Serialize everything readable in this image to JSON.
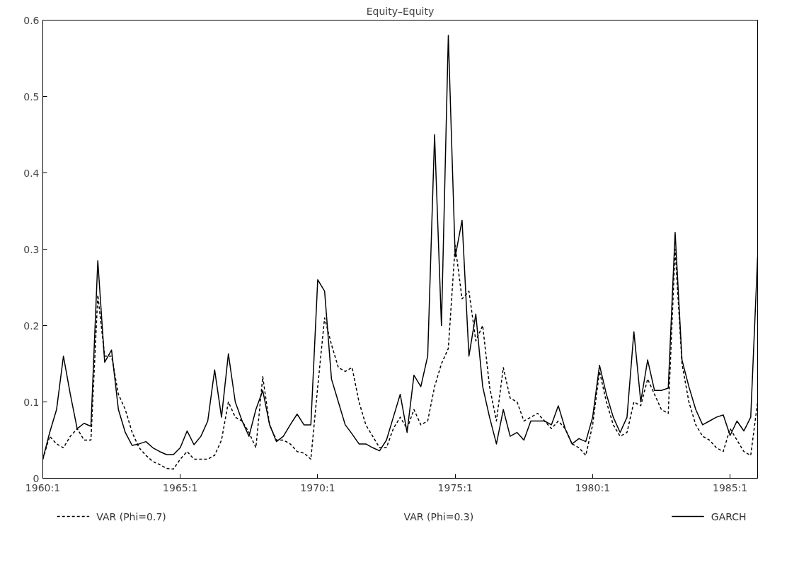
{
  "chart_data": {
    "type": "line",
    "title": "Equity–Equity",
    "categories": [
      "1960:1",
      null,
      null,
      null,
      null,
      null,
      null,
      null,
      null,
      null,
      null,
      null,
      null,
      null,
      null,
      null,
      null,
      null,
      null,
      null,
      "1965:1",
      null,
      null,
      null,
      null,
      null,
      null,
      null,
      null,
      null,
      null,
      null,
      null,
      null,
      null,
      null,
      null,
      null,
      null,
      null,
      "1970:1",
      null,
      null,
      null,
      null,
      null,
      null,
      null,
      null,
      null,
      null,
      null,
      null,
      null,
      null,
      null,
      null,
      null,
      null,
      null,
      "1975:1",
      null,
      null,
      null,
      null,
      null,
      null,
      null,
      null,
      null,
      null,
      null,
      null,
      null,
      null,
      null,
      null,
      null,
      null,
      null,
      "1980:1",
      null,
      null,
      null,
      null,
      null,
      null,
      null,
      null,
      null,
      null,
      null,
      null,
      null,
      null,
      null,
      null,
      null,
      null,
      null,
      "1985:1",
      null,
      null,
      null,
      null
    ],
    "ylim": [
      0,
      0.6
    ],
    "yticks": [
      0,
      0.1,
      0.2,
      0.3,
      0.4,
      0.5,
      0.6
    ],
    "series": [
      {
        "name": "VAR (Phi=0.7)",
        "color": "#000000",
        "line_style": "dashed",
        "values": [
          0.025,
          0.055,
          0.045,
          0.04,
          0.055,
          0.065,
          0.05,
          0.05,
          0.24,
          0.16,
          0.16,
          0.11,
          0.09,
          0.06,
          0.04,
          0.03,
          0.022,
          0.018,
          0.013,
          0.012,
          0.025,
          0.035,
          0.025,
          0.025,
          0.025,
          0.03,
          0.05,
          0.1,
          0.08,
          0.075,
          0.06,
          0.04,
          0.133,
          0.07,
          0.05,
          0.05,
          0.045,
          0.035,
          0.033,
          0.025,
          0.12,
          0.21,
          0.175,
          0.145,
          0.14,
          0.145,
          0.1,
          0.07,
          0.055,
          0.04,
          0.04,
          0.065,
          0.08,
          0.065,
          0.09,
          0.07,
          0.075,
          0.12,
          0.15,
          0.17,
          0.305,
          0.235,
          0.245,
          0.18,
          0.2,
          0.12,
          0.075,
          0.145,
          0.105,
          0.1,
          0.075,
          0.08,
          0.085,
          0.075,
          0.065,
          0.075,
          0.065,
          0.045,
          0.04,
          0.03,
          0.07,
          0.14,
          0.1,
          0.07,
          0.055,
          0.06,
          0.1,
          0.095,
          0.13,
          0.11,
          0.09,
          0.085,
          0.3,
          0.15,
          0.1,
          0.07,
          0.055,
          0.05,
          0.04,
          0.035,
          0.065,
          0.05,
          0.035,
          0.03,
          0.1
        ]
      },
      {
        "name": "VAR (Phi=0.3)",
        "values": [
          null,
          null,
          null,
          null,
          null,
          null,
          null,
          null,
          null,
          null,
          null,
          null,
          null,
          null,
          null,
          null,
          null,
          null,
          null,
          null,
          null,
          null,
          null,
          null,
          null,
          null,
          null,
          null,
          null,
          null,
          null,
          null,
          null,
          null,
          null,
          null,
          null,
          null,
          null,
          null,
          null,
          null,
          null,
          null,
          null,
          null,
          null,
          null,
          null,
          null,
          null,
          null,
          null,
          null,
          null,
          null,
          null,
          null,
          null,
          null,
          null,
          null,
          null,
          null,
          null,
          null,
          null,
          null,
          null,
          null,
          null,
          null,
          null,
          null,
          null,
          null,
          null,
          null,
          null,
          null,
          null,
          null,
          null,
          null,
          null,
          null,
          null,
          null,
          null,
          null,
          null,
          null,
          null,
          null,
          null,
          null,
          null,
          null,
          null,
          null,
          null,
          null,
          null,
          null,
          null
        ]
      },
      {
        "name": "GARCH",
        "color": "#000000",
        "line_style": "solid",
        "values": [
          0.025,
          0.06,
          0.09,
          0.16,
          0.11,
          0.065,
          0.072,
          0.068,
          0.285,
          0.152,
          0.168,
          0.09,
          0.06,
          0.043,
          0.045,
          0.048,
          0.04,
          0.035,
          0.031,
          0.031,
          0.04,
          0.062,
          0.044,
          0.055,
          0.075,
          0.142,
          0.08,
          0.163,
          0.1,
          0.075,
          0.055,
          0.09,
          0.115,
          0.07,
          0.048,
          0.055,
          0.07,
          0.084,
          0.07,
          0.07,
          0.26,
          0.245,
          0.13,
          0.1,
          0.07,
          0.058,
          0.045,
          0.045,
          0.04,
          0.036,
          0.05,
          0.08,
          0.11,
          0.06,
          0.135,
          0.12,
          0.16,
          0.45,
          0.2,
          0.58,
          0.29,
          0.338,
          0.16,
          0.215,
          0.12,
          0.08,
          0.045,
          0.09,
          0.055,
          0.06,
          0.05,
          0.075,
          0.075,
          0.075,
          0.07,
          0.095,
          0.065,
          0.045,
          0.052,
          0.048,
          0.08,
          0.148,
          0.11,
          0.08,
          0.06,
          0.08,
          0.192,
          0.1,
          0.155,
          0.115,
          0.115,
          0.118,
          0.322,
          0.155,
          0.12,
          0.09,
          0.07,
          0.075,
          0.08,
          0.083,
          0.056,
          0.075,
          0.062,
          0.08,
          0.29
        ]
      }
    ],
    "legend": "bottom",
    "grid": false
  }
}
